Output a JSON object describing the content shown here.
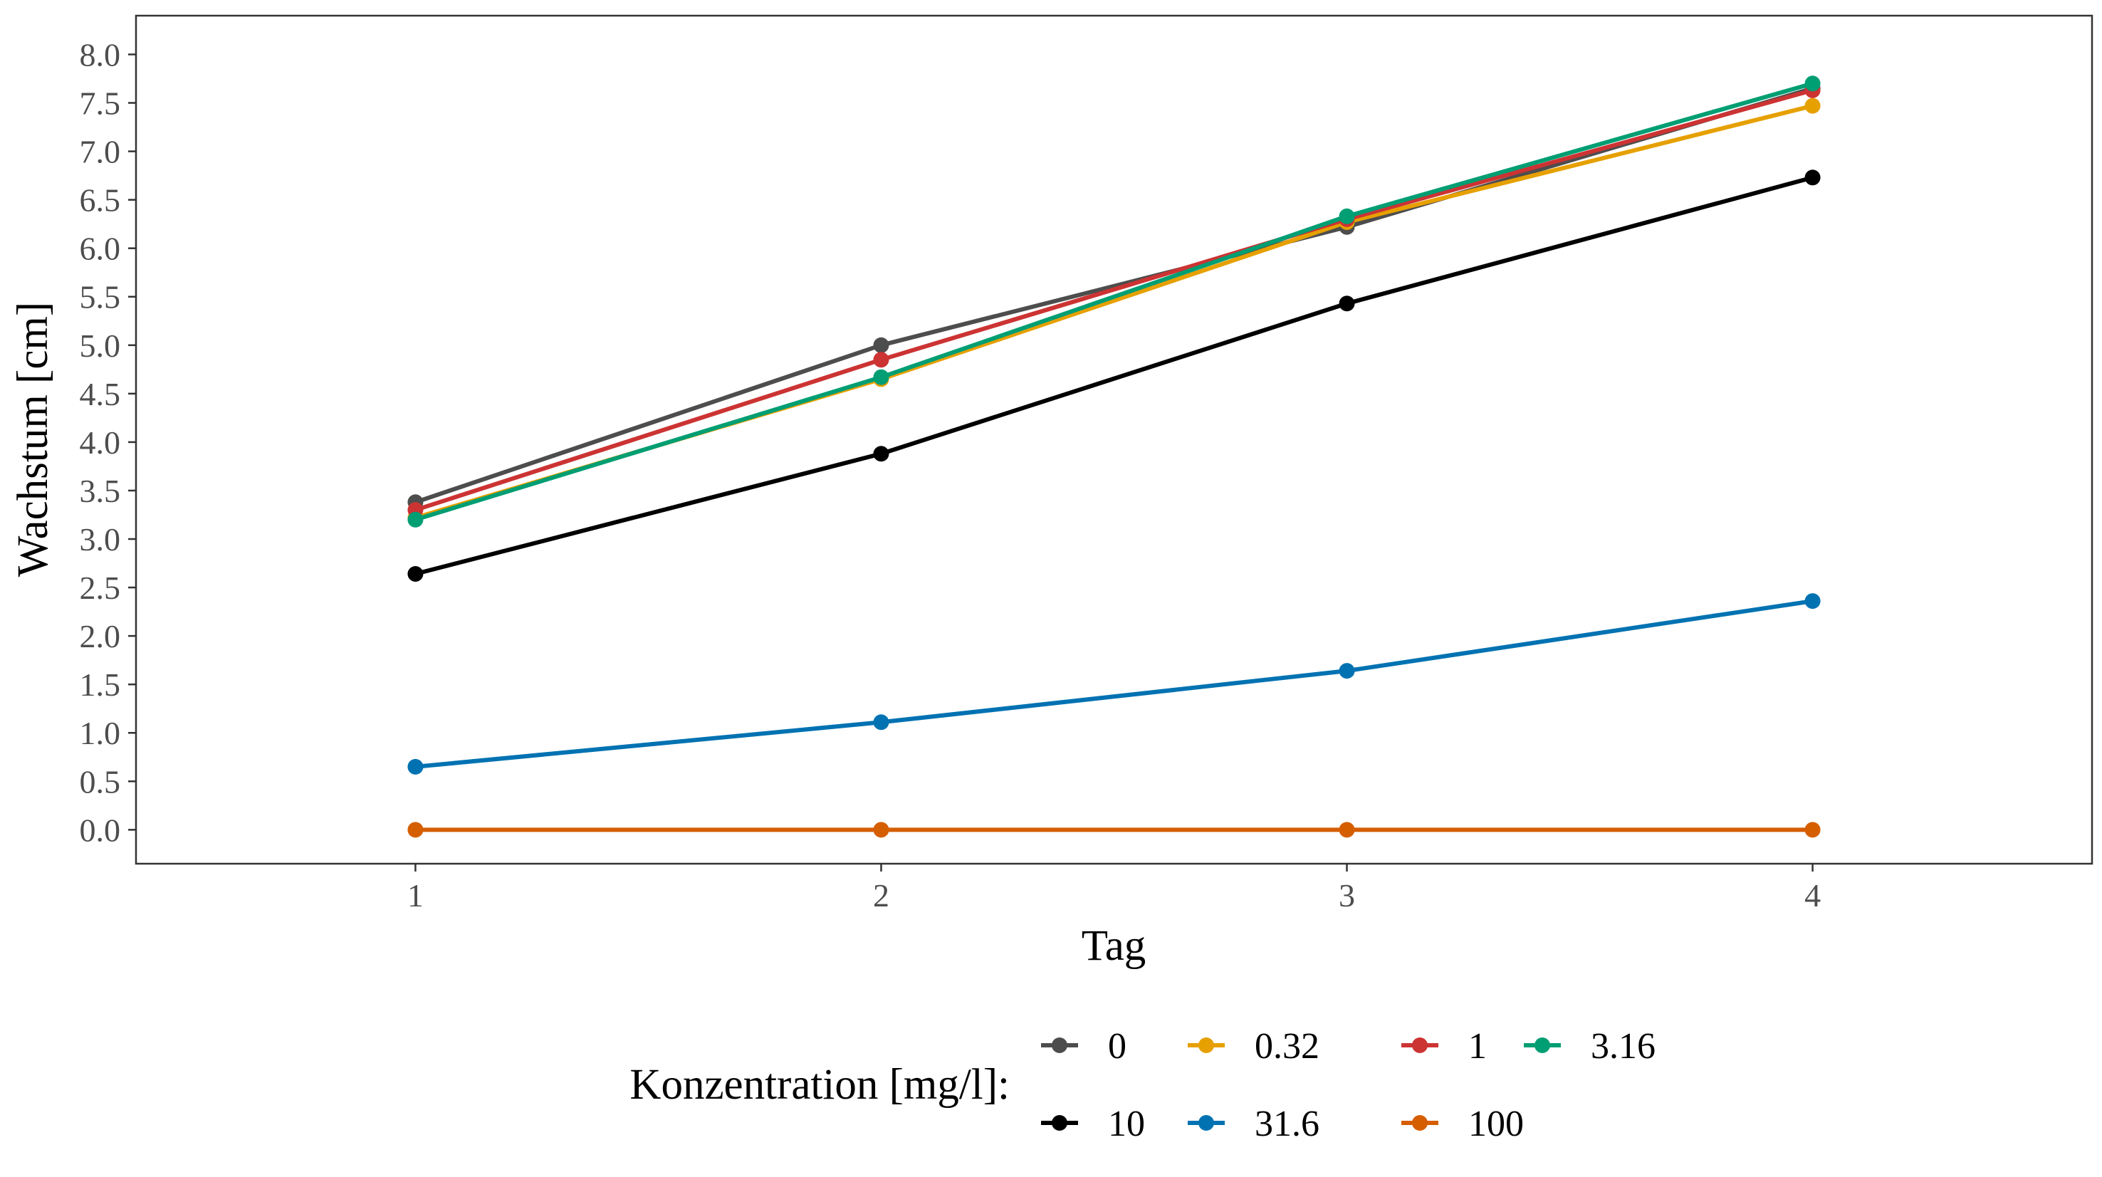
{
  "chart_data": {
    "type": "line",
    "xlabel": "Tag",
    "ylabel": "Wachstum [cm]",
    "x": [
      1,
      2,
      3,
      4
    ],
    "xlim": [
      0.4,
      4.6
    ],
    "ylim": [
      -0.35,
      8.4
    ],
    "yticks": [
      "0.0",
      "0.5",
      "1.0",
      "1.5",
      "2.0",
      "2.5",
      "3.0",
      "3.5",
      "4.0",
      "4.5",
      "5.0",
      "5.5",
      "6.0",
      "6.5",
      "7.0",
      "7.5",
      "8.0"
    ],
    "xticks": [
      "1",
      "2",
      "3",
      "4"
    ],
    "grid": false,
    "legend": {
      "title": "Konzentration [mg/l]:",
      "placement": "bottom"
    },
    "series": [
      {
        "name": "0",
        "color": "#4d4d4d",
        "values": [
          3.38,
          5.0,
          6.22,
          7.65
        ]
      },
      {
        "name": "0.32",
        "color": "#e6a000",
        "values": [
          3.22,
          4.65,
          6.27,
          7.47
        ]
      },
      {
        "name": "1",
        "color": "#cc3333",
        "values": [
          3.3,
          4.85,
          6.3,
          7.63
        ]
      },
      {
        "name": "3.16",
        "color": "#009e73",
        "values": [
          3.2,
          4.67,
          6.33,
          7.7
        ]
      },
      {
        "name": "10",
        "color": "#000000",
        "values": [
          2.64,
          3.88,
          5.43,
          6.73
        ]
      },
      {
        "name": "31.6",
        "color": "#0072b2",
        "values": [
          0.65,
          1.11,
          1.64,
          2.36
        ]
      },
      {
        "name": "100",
        "color": "#d55e00",
        "values": [
          0.0,
          0.0,
          0.0,
          0.0
        ]
      }
    ]
  }
}
